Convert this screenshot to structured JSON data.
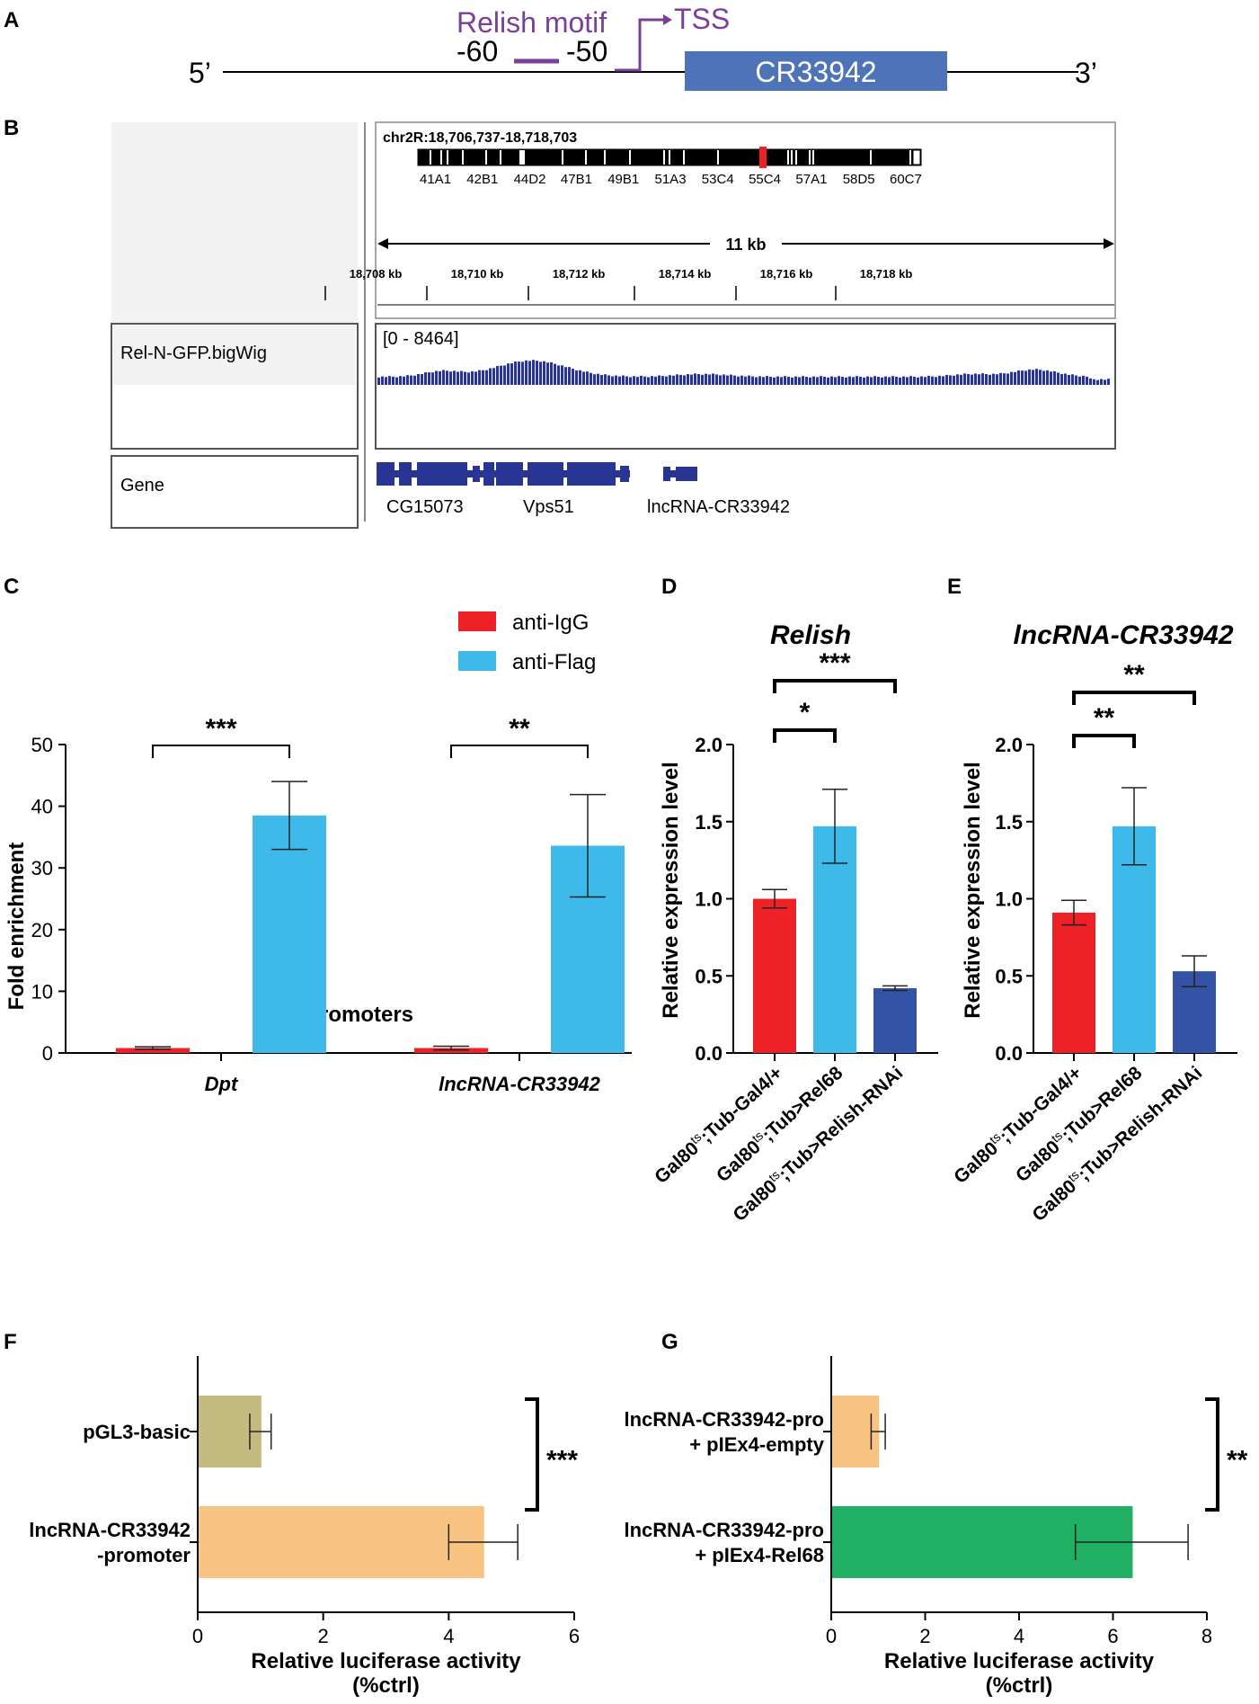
{
  "panel_labels": {
    "a": "A",
    "b": "B",
    "c": "C",
    "d": "D",
    "e": "E",
    "f": "F",
    "g": "G"
  },
  "colors": {
    "igg_red": "#ee2126",
    "flag_cyan": "#3dbae9",
    "navy": "#3553a6",
    "olive": "#c4b97e",
    "peach": "#f9c482",
    "green": "#20b064",
    "track_blue": "#283593",
    "motif_purple": "#7b3f98",
    "gene_box": "#4f73b8"
  },
  "panel_a": {
    "five_prime": "5’",
    "three_prime": "3’",
    "motif_label": "Relish motif",
    "tss_label": "TSS",
    "pos_start": "-60",
    "pos_end": "-50",
    "gene_name": "CR33942"
  },
  "panel_b": {
    "locus": "chr2R:18,706,737-18,718,703",
    "bands": [
      "41A1",
      "42B1",
      "44D2",
      "47B1",
      "49B1",
      "51A3",
      "53C4",
      "55C4",
      "57A1",
      "58D5",
      "60C7"
    ],
    "span_label": "11 kb",
    "ticks": [
      "18,708 kb",
      "18,710 kb",
      "18,712 kb",
      "18,714 kb",
      "18,716 kb",
      "18,718 kb"
    ],
    "track_name": "Rel-N-GFP.bigWig",
    "track_range": "[0 - 8464]",
    "gene_track_name": "Gene",
    "genes": [
      "CG15073",
      "Vps51",
      "lncRNA-CR33942"
    ]
  },
  "chart_data": [
    {
      "id": "C",
      "type": "bar",
      "categories": [
        "Dpt",
        "lncRNA-CR33942"
      ],
      "series": [
        {
          "name": "anti-IgG",
          "values": [
            0.8,
            0.8
          ],
          "errors": [
            0.2,
            0.3
          ],
          "color": "#ee2126"
        },
        {
          "name": "anti-Flag",
          "values": [
            38.5,
            33.6
          ],
          "errors": [
            5.5,
            8.3
          ],
          "color": "#3dbae9"
        }
      ],
      "ylabel": "Fold enrichment",
      "xlabel": "Promoters",
      "ylim": [
        0,
        50
      ],
      "yticks": [
        "0",
        "10",
        "20",
        "30",
        "40",
        "50"
      ],
      "significance": [
        "***",
        "**"
      ]
    },
    {
      "id": "D",
      "type": "bar",
      "title": "Relish",
      "categories": [
        "Gal80ts;Tub-Gal4/+",
        "Gal80ts;Tub>Rel68",
        "Gal80ts;Tub>Relish-RNAi"
      ],
      "tick_parts": [
        [
          "Gal80",
          "ts",
          ";Tub-Gal4/+"
        ],
        [
          "Gal80",
          "ts",
          ";Tub>Rel68"
        ],
        [
          "Gal80",
          "ts",
          ";Tub>Relish-RNAi"
        ]
      ],
      "values": [
        1.0,
        1.47,
        0.42
      ],
      "errors": [
        0.06,
        0.24,
        0.015
      ],
      "colors": [
        "#ee2126",
        "#3dbae9",
        "#3553a6"
      ],
      "ylabel": "Relative expression level",
      "ylim": [
        0,
        2
      ],
      "yticks": [
        "0.0",
        "0.5",
        "1.0",
        "1.5",
        "2.0"
      ],
      "significance": [
        "*",
        "***"
      ]
    },
    {
      "id": "E",
      "type": "bar",
      "title": "lncRNA-CR33942",
      "categories": [
        "Gal80ts;Tub-Gal4/+",
        "Gal80ts;Tub>Rel68",
        "Gal80ts;Tub>Relish-RNAi"
      ],
      "tick_parts": [
        [
          "Gal80",
          "ts",
          ";Tub-Gal4/+"
        ],
        [
          "Gal80",
          "ts",
          ";Tub>Rel68"
        ],
        [
          "Gal80",
          "ts",
          ";Tub>Relish-RNAi"
        ]
      ],
      "values": [
        0.91,
        1.47,
        0.53
      ],
      "errors": [
        0.08,
        0.25,
        0.1
      ],
      "colors": [
        "#ee2126",
        "#3dbae9",
        "#3553a6"
      ],
      "ylabel": "Relative expression level",
      "ylim": [
        0,
        2
      ],
      "yticks": [
        "0.0",
        "0.5",
        "1.0",
        "1.5",
        "2.0"
      ],
      "significance": [
        "**",
        "**"
      ]
    },
    {
      "id": "F",
      "type": "bar",
      "orientation": "horizontal",
      "categories": [
        "pGL3-basic",
        "lncRNA-CR33942\n-promoter"
      ],
      "values": [
        1.0,
        4.55
      ],
      "errors": [
        0.17,
        0.55
      ],
      "colors": [
        "#c4b97e",
        "#f9c482"
      ],
      "xlabel": "Relative luciferase activity\n(%ctrl)",
      "xlim": [
        0,
        6
      ],
      "xticks": [
        "0",
        "2",
        "4",
        "6"
      ],
      "significance": [
        "***"
      ]
    },
    {
      "id": "G",
      "type": "bar",
      "orientation": "horizontal",
      "categories": [
        "lncRNA-CR33942-pro\n+ pIEx4-empty",
        "lncRNA-CR33942-pro\n+ pIEx4-Rel68"
      ],
      "values": [
        1.0,
        6.4
      ],
      "errors": [
        0.15,
        1.2
      ],
      "colors": [
        "#f9c482",
        "#20b064"
      ],
      "xlabel": "Relative luciferase activity\n(%ctrl)",
      "xlim": [
        0,
        8
      ],
      "xticks": [
        "0",
        "2",
        "4",
        "6",
        "8"
      ],
      "significance": [
        "**"
      ]
    }
  ]
}
